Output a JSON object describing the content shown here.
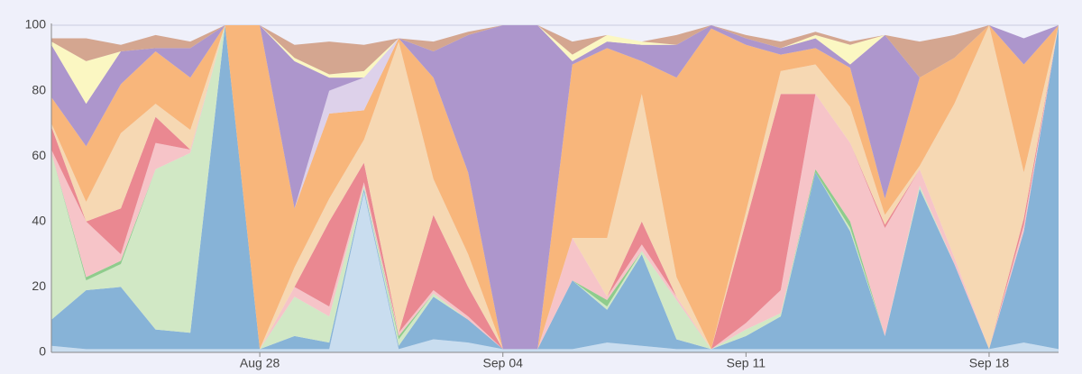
{
  "chart_data": {
    "type": "stacked_area",
    "x": [
      "Aug 22",
      "Aug 23",
      "Aug 24",
      "Aug 25",
      "Aug 26",
      "Aug 27",
      "Aug 28",
      "Aug 29",
      "Aug 30",
      "Aug 31",
      "Sep 01",
      "Sep 02",
      "Sep 03",
      "Sep 04",
      "Sep 05",
      "Sep 06",
      "Sep 07",
      "Sep 08",
      "Sep 09",
      "Sep 10",
      "Sep 11",
      "Sep 12",
      "Sep 13",
      "Sep 14",
      "Sep 15",
      "Sep 16",
      "Sep 17",
      "Sep 18",
      "Sep 19",
      "Sep 20"
    ],
    "xticks": [
      "Aug 28",
      "Sep 04",
      "Sep 11",
      "Sep 18"
    ],
    "ylim": [
      0,
      100
    ],
    "yticks": [
      0,
      20,
      40,
      60,
      80,
      100
    ],
    "grid": true,
    "series": [
      {
        "color": "#c9ddef",
        "values": [
          2,
          1,
          1,
          1,
          1,
          1,
          1,
          1,
          1,
          49,
          1,
          4,
          3,
          1,
          1,
          1,
          3,
          2,
          1,
          1,
          1,
          1,
          1,
          1,
          1,
          1,
          1,
          1,
          3,
          1
        ]
      },
      {
        "color": "#87b3d7",
        "values": [
          8,
          18,
          19,
          6,
          5,
          99,
          0,
          4,
          2,
          1,
          1,
          13,
          7,
          0,
          0,
          21,
          10,
          28,
          3,
          0,
          4,
          10,
          54,
          36,
          4,
          49,
          26,
          0,
          34,
          99
        ]
      },
      {
        "color": "#d1e8c5",
        "values": [
          51,
          3,
          7,
          49,
          55,
          0,
          0,
          12,
          8,
          1,
          2,
          1,
          0,
          0,
          0,
          0,
          1,
          1,
          12,
          0,
          2,
          1,
          0,
          1,
          0,
          1,
          0,
          0,
          0,
          0
        ]
      },
      {
        "color": "#8fcc8c",
        "values": [
          0,
          1,
          1,
          0,
          0,
          0,
          0,
          0,
          0,
          0,
          1,
          0,
          0,
          0,
          0,
          0,
          2,
          0,
          0,
          0,
          0,
          0,
          1,
          2,
          0,
          0,
          0,
          0,
          0,
          0
        ]
      },
      {
        "color": "#f6c4c8",
        "values": [
          1,
          17,
          2,
          8,
          1,
          0,
          0,
          3,
          3,
          1,
          1,
          1,
          1,
          0,
          0,
          13,
          1,
          2,
          1,
          0,
          2,
          7,
          23,
          24,
          33,
          5,
          2,
          0,
          2,
          0
        ]
      },
      {
        "color": "#ea8891",
        "values": [
          7,
          0,
          14,
          8,
          0,
          0,
          0,
          0,
          26,
          6,
          0,
          23,
          9,
          0,
          0,
          0,
          0,
          7,
          0,
          0,
          31,
          60,
          0,
          0,
          1,
          0,
          0,
          0,
          2,
          0
        ]
      },
      {
        "color": "#f6d8b3",
        "values": [
          1,
          6,
          23,
          4,
          6,
          0,
          0,
          6,
          7,
          7,
          89,
          11,
          10,
          0,
          0,
          0,
          18,
          39,
          6,
          0,
          3,
          7,
          9,
          11,
          3,
          1,
          47,
          99,
          14,
          0
        ]
      },
      {
        "color": "#f8b67b",
        "values": [
          8,
          17,
          15,
          16,
          16,
          0,
          99,
          18,
          26,
          9,
          1,
          31,
          25,
          0,
          0,
          53,
          58,
          10,
          61,
          98,
          51,
          5,
          5,
          12,
          5,
          27,
          14,
          0,
          33,
          0
        ]
      },
      {
        "color": "#ddd1ea",
        "values": [
          0,
          0,
          0,
          0,
          0,
          0,
          0,
          0,
          7,
          10,
          0,
          0,
          0,
          0,
          0,
          0,
          0,
          0,
          0,
          0,
          0,
          0,
          0,
          0,
          0,
          0,
          0,
          0,
          0,
          0
        ]
      },
      {
        "color": "#ad96cc",
        "values": [
          16,
          13,
          10,
          1,
          9,
          0,
          0,
          45,
          4,
          0,
          0,
          8,
          42,
          99,
          99,
          1,
          2,
          5,
          10,
          1,
          2,
          2,
          3,
          1,
          50,
          0,
          0,
          0,
          8,
          0
        ]
      },
      {
        "color": "#fbf7c2",
        "values": [
          1,
          13,
          0,
          0,
          0,
          0,
          0,
          1,
          1,
          2,
          0,
          0,
          0,
          0,
          0,
          2,
          2,
          1,
          0,
          0,
          0,
          0,
          1,
          6,
          0,
          0,
          0,
          0,
          0,
          0
        ]
      },
      {
        "color": "#d4a690",
        "values": [
          1,
          7,
          2,
          4,
          2,
          0,
          0,
          4,
          10,
          8,
          0,
          3,
          1,
          0,
          0,
          4,
          0,
          0,
          3,
          0,
          1,
          2,
          1,
          1,
          0,
          11,
          7,
          0,
          0,
          0
        ]
      }
    ]
  }
}
